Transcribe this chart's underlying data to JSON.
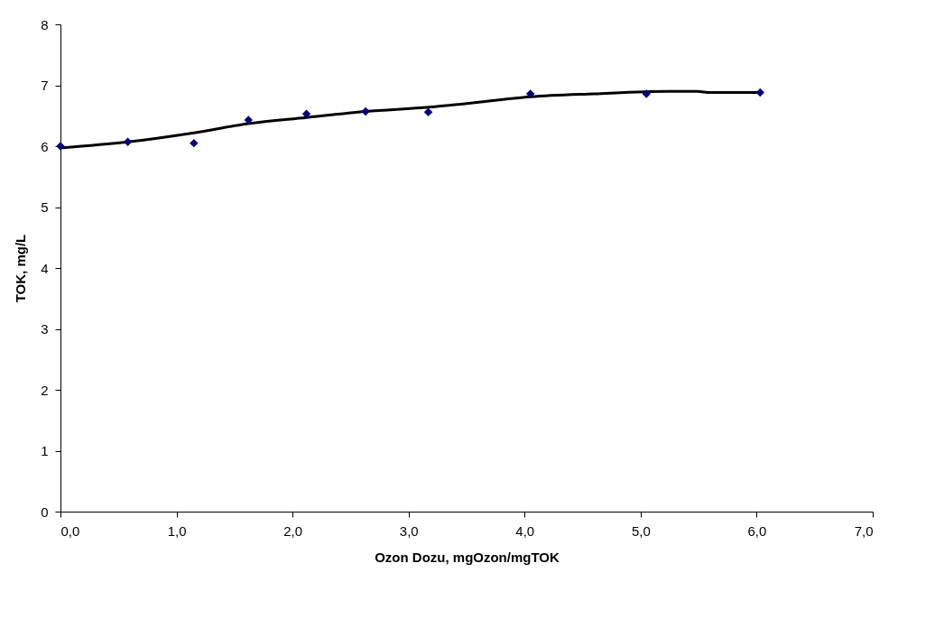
{
  "chart_data": {
    "type": "scatter",
    "xlabel": "Ozon Dozu, mgOzon/mgTOK",
    "ylabel": "TOK, mg/L",
    "series": [
      {
        "color": "#000080",
        "marker": "diamond",
        "x": [
          0,
          0.58,
          1.15,
          1.62,
          2.12,
          2.63,
          3.17,
          4.05,
          5.05,
          6.03
        ],
        "values": [
          6.0,
          6.07,
          6.05,
          6.43,
          6.53,
          6.57,
          6.56,
          6.86,
          6.86,
          6.88
        ]
      },
      {
        "type": "line",
        "color": "#000000",
        "marker": "none",
        "line_style": "solid",
        "x": [
          0,
          0.58,
          1.15,
          1.62,
          2.12,
          2.63,
          3.18,
          3.5,
          4.05,
          4.6,
          5.24,
          5.49,
          5.6,
          6.03
        ],
        "values": [
          5.97,
          6.07,
          6.22,
          6.37,
          6.47,
          6.57,
          6.64,
          6.7,
          6.81,
          6.86,
          6.9,
          6.9,
          6.88,
          6.88
        ]
      }
    ],
    "xlim": [
      0,
      7
    ],
    "ylim": [
      0,
      8
    ],
    "xticks": [
      {
        "value": 0,
        "label": "0,0"
      },
      {
        "value": 1,
        "label": "1,0"
      },
      {
        "value": 2,
        "label": "2,0"
      },
      {
        "value": 3,
        "label": "3,0"
      },
      {
        "value": 4,
        "label": "4,0"
      },
      {
        "value": 5,
        "label": "5,0"
      },
      {
        "value": 6,
        "label": "6,0"
      },
      {
        "value": 7,
        "label": "7,0"
      }
    ],
    "yticks": [
      0,
      1,
      2,
      3,
      4,
      5,
      6,
      7,
      8
    ],
    "grid": false
  }
}
